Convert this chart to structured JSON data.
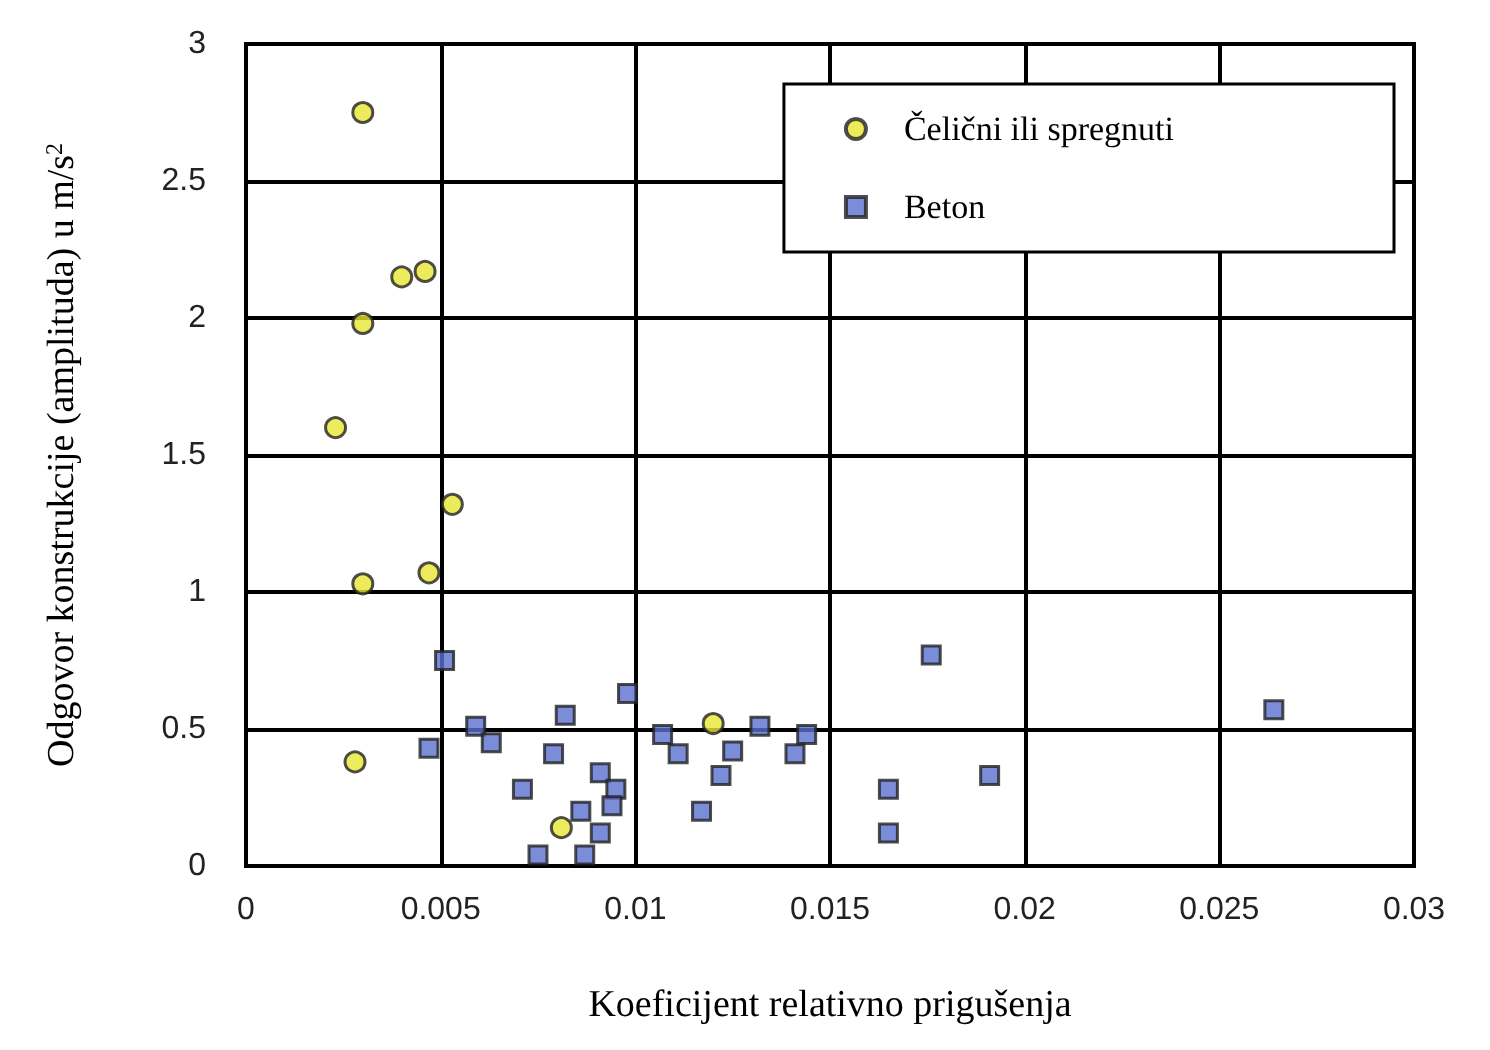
{
  "chart_data": {
    "type": "scatter",
    "xlabel": "Koeficijent relativno prigušenja",
    "ylabel": "Odgovor konstrukcije (amplituda) u m/s$^{2}$",
    "xlim": [
      0,
      0.03
    ],
    "xticks": [
      0,
      0.005,
      0.01,
      0.015,
      0.02,
      0.025,
      0.03
    ],
    "ylim": [
      0,
      3
    ],
    "yticks": [
      0,
      0.5,
      1,
      1.5,
      2,
      2.5,
      3
    ],
    "grid": true,
    "legend": "top right",
    "series": [
      {
        "name": "Čelični ili spregnuti",
        "color": "#e6e633",
        "marker": "circle",
        "x": [
          0.003,
          0.004,
          0.0046,
          0.003,
          0.0023,
          0.0053,
          0.0047,
          0.003,
          0.0028,
          0.0081,
          0.012
        ],
        "values": [
          2.75,
          2.15,
          2.17,
          1.98,
          1.6,
          1.32,
          1.07,
          1.03,
          0.38,
          0.14,
          0.52
        ]
      },
      {
        "name": "Beton",
        "color": "#5a6fd0",
        "marker": "square",
        "x": [
          0.0051,
          0.0098,
          0.0082,
          0.0059,
          0.0063,
          0.0047,
          0.0079,
          0.0071,
          0.0091,
          0.0095,
          0.0094,
          0.0086,
          0.0091,
          0.0075,
          0.0087,
          0.0107,
          0.0111,
          0.0132,
          0.0144,
          0.0141,
          0.0125,
          0.0122,
          0.0117,
          0.0176,
          0.0165,
          0.0165,
          0.0191,
          0.0264
        ],
        "values": [
          0.75,
          0.63,
          0.55,
          0.51,
          0.45,
          0.43,
          0.41,
          0.28,
          0.34,
          0.28,
          0.22,
          0.2,
          0.12,
          0.04,
          0.04,
          0.48,
          0.41,
          0.51,
          0.48,
          0.41,
          0.42,
          0.33,
          0.2,
          0.77,
          0.28,
          0.12,
          0.33,
          0.57
        ]
      }
    ]
  }
}
